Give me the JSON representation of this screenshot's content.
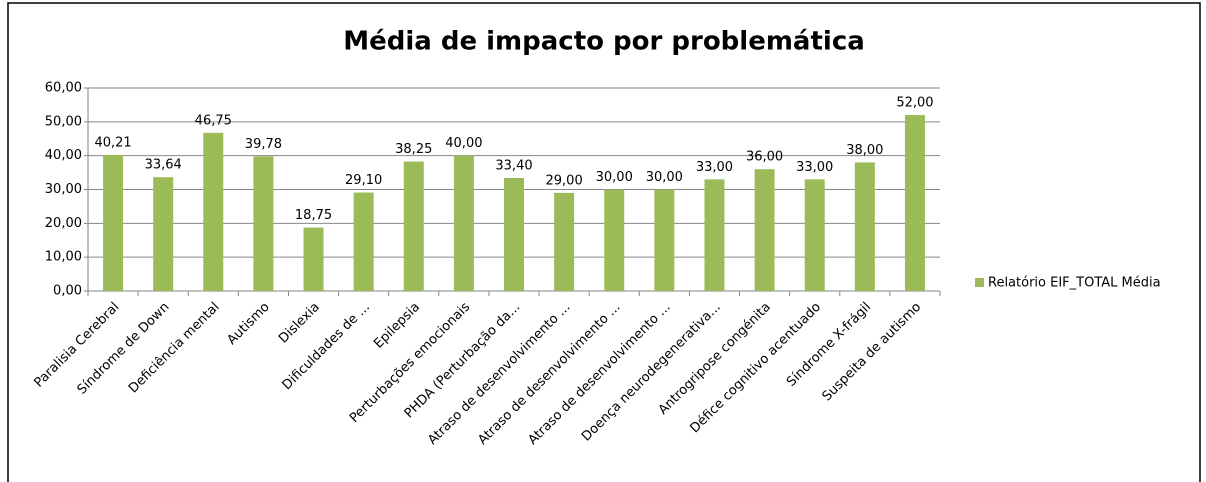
{
  "chart_data": {
    "type": "bar",
    "title": "Média de impacto por problemática",
    "categories": [
      "Paralisia Cerebral",
      "Síndrome de Down",
      "Deficiência mental",
      "Autismo",
      "Dislexia",
      "Dificuldades de ...",
      "Epilepsia",
      "Perturbações emocionais",
      "PHDA (Perturbação da...",
      "Atraso de desenvolvimento ...",
      "Atraso de desenvolvimento ...",
      "Atraso de desenvolvimento ...",
      "Doença neurodegenerativa...",
      "Antrogripose congénita",
      "Défice cognitivo acentuado",
      "Síndrome X-frágil",
      "Suspeita de autismo"
    ],
    "series": [
      {
        "name": "Relatório EIF_TOTAL Média",
        "color": "#9bbb59",
        "values": [
          40.21,
          33.64,
          46.75,
          39.78,
          18.75,
          29.1,
          38.25,
          40,
          33.4,
          29,
          30,
          30,
          33,
          36,
          33,
          38,
          52
        ],
        "value_labels": [
          "40,21",
          "33,64",
          "46,75",
          "39,78",
          "18,75",
          "29,10",
          "38,25",
          "40,00",
          "33,40",
          "29,00",
          "30,00",
          "30,00",
          "33,00",
          "36,00",
          "33,00",
          "38,00",
          "52,00"
        ]
      }
    ],
    "ylim": [
      0,
      60
    ],
    "yticks": [
      {
        "value": 0,
        "label": "0,00"
      },
      {
        "value": 10,
        "label": "10,00"
      },
      {
        "value": 20,
        "label": "20,00"
      },
      {
        "value": 30,
        "label": "30,00"
      },
      {
        "value": 40,
        "label": "40,00"
      },
      {
        "value": 50,
        "label": "50,00"
      },
      {
        "value": 60,
        "label": "60,00"
      }
    ],
    "grid": true,
    "legend": "right"
  }
}
